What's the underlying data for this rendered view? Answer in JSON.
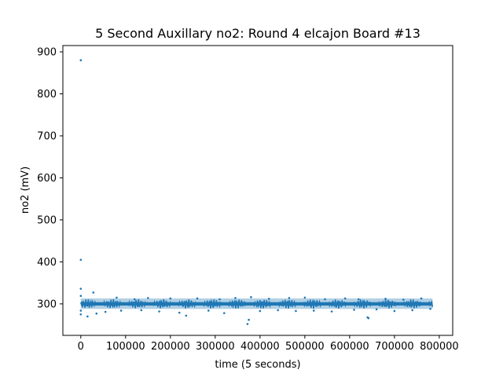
{
  "chart_data": {
    "type": "scatter",
    "title": "5 Second Auxillary no2: Round 4 elcajon Board #13",
    "xlabel": "time (5 seconds)",
    "ylabel": "no2 (mV)",
    "xlim": [
      -40000,
      830000
    ],
    "ylim": [
      225,
      915
    ],
    "xticks": [
      0,
      100000,
      200000,
      300000,
      400000,
      500000,
      600000,
      700000,
      800000
    ],
    "yticks": [
      300,
      400,
      500,
      600,
      700,
      800,
      900
    ],
    "grid": false,
    "legend": "none",
    "color": "#1f77b4",
    "baseline": {
      "x_start": 0,
      "x_end": 785000,
      "mean": 300,
      "band_low": 288,
      "band_high": 313
    },
    "series": [
      {
        "points": [
          [
            0,
            880
          ],
          [
            0,
            405
          ],
          [
            0,
            336
          ],
          [
            0,
            319
          ],
          [
            0,
            284
          ],
          [
            0,
            275
          ],
          [
            15000,
            270
          ],
          [
            28000,
            327
          ],
          [
            35000,
            277
          ],
          [
            55000,
            281
          ],
          [
            80000,
            315
          ],
          [
            90000,
            284
          ],
          [
            120000,
            311
          ],
          [
            135000,
            285
          ],
          [
            150000,
            314
          ],
          [
            175000,
            282
          ],
          [
            200000,
            313
          ],
          [
            220000,
            279
          ],
          [
            235000,
            272
          ],
          [
            260000,
            313
          ],
          [
            285000,
            284
          ],
          [
            310000,
            311
          ],
          [
            320000,
            278
          ],
          [
            345000,
            314
          ],
          [
            372000,
            252
          ],
          [
            375000,
            262
          ],
          [
            380000,
            316
          ],
          [
            400000,
            283
          ],
          [
            420000,
            312
          ],
          [
            440000,
            285
          ],
          [
            465000,
            314
          ],
          [
            480000,
            283
          ],
          [
            500000,
            315
          ],
          [
            520000,
            284
          ],
          [
            545000,
            311
          ],
          [
            560000,
            282
          ],
          [
            590000,
            313
          ],
          [
            610000,
            286
          ],
          [
            620000,
            311
          ],
          [
            640000,
            268
          ],
          [
            642000,
            266
          ],
          [
            660000,
            287
          ],
          [
            680000,
            312
          ],
          [
            700000,
            283
          ],
          [
            720000,
            310
          ],
          [
            740000,
            285
          ],
          [
            760000,
            313
          ],
          [
            780000,
            288
          ]
        ]
      }
    ]
  }
}
